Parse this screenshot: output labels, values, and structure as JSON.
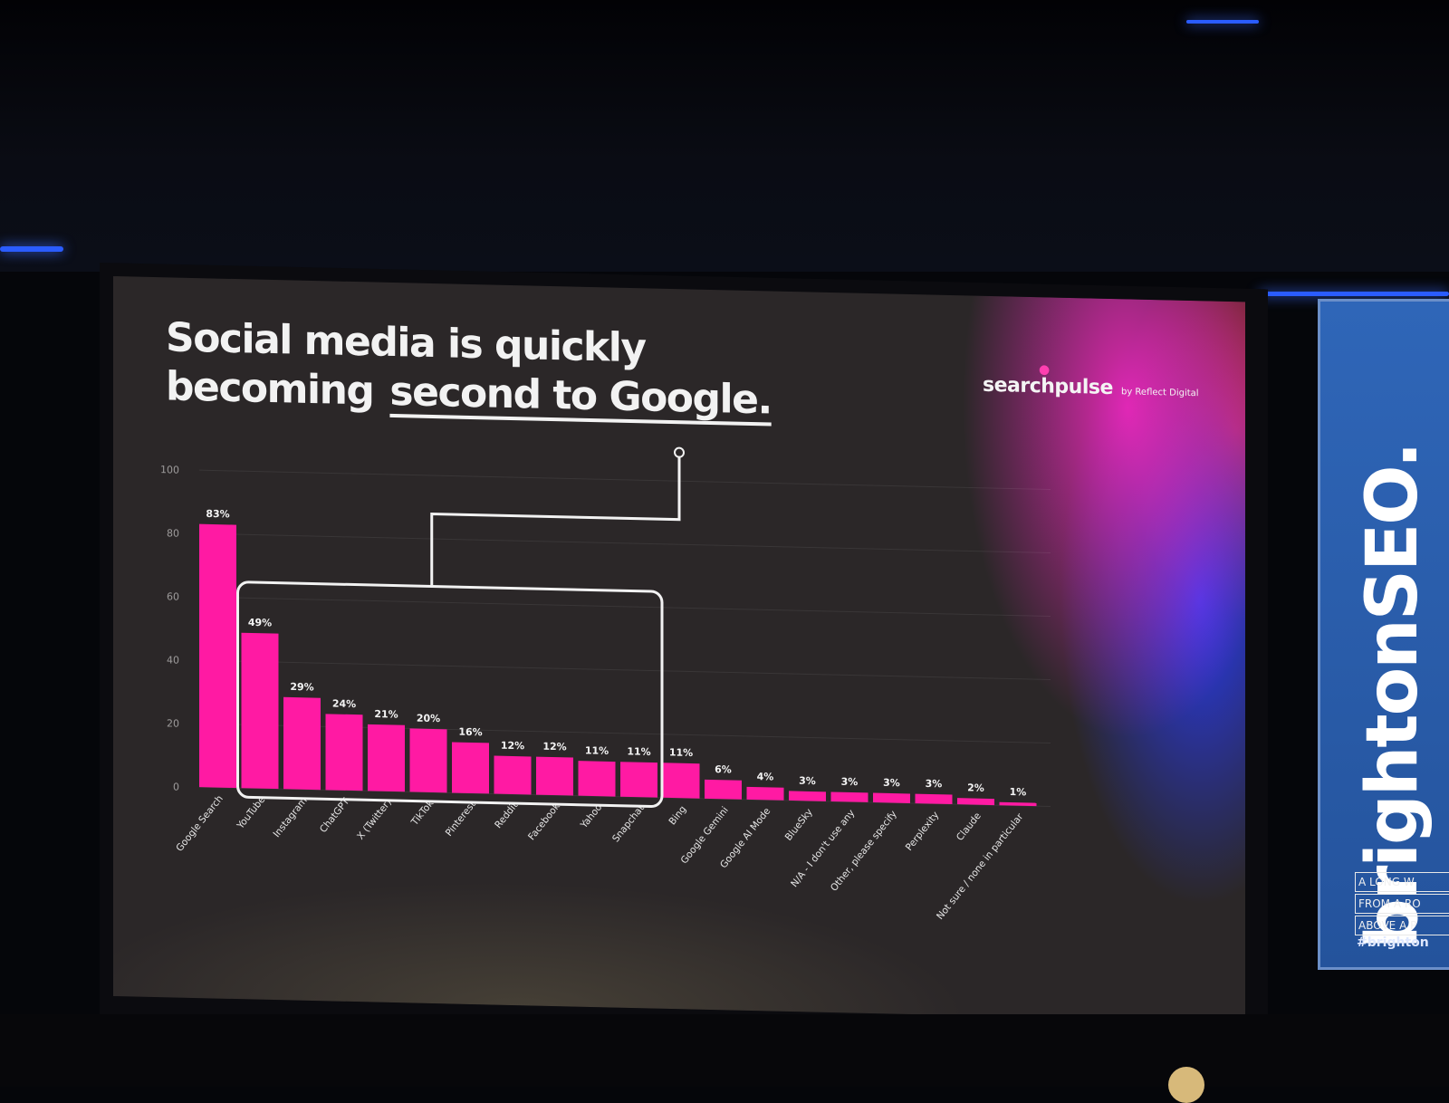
{
  "slide": {
    "title_line1": "Social media is quickly",
    "title_line2": "becoming",
    "title_highlight": "second to Google.",
    "brand": "searchpulse",
    "brand_sub": "by Reflect Digital"
  },
  "banner": {
    "logo": "brightonSEO.",
    "tagline": [
      "A LONG W",
      "FROM A RO",
      "ABOVE A P"
    ],
    "hashtag": "#brighton"
  },
  "chart_data": {
    "type": "bar",
    "title": "",
    "xlabel": "",
    "ylabel": "",
    "ylim": [
      0,
      100
    ],
    "yticks": [
      "0",
      "20",
      "40",
      "60",
      "80",
      "100"
    ],
    "categories": [
      "Google Search",
      "YouTube",
      "Instagram",
      "ChatGPT",
      "X (Twitter)",
      "TikTok",
      "Pinterest",
      "Reddit",
      "Facebook",
      "Yahoo",
      "Snapchat",
      "Bing",
      "Google Gemini",
      "Google AI Mode",
      "BlueSky",
      "N/A - I don't use any",
      "Other, please specify",
      "Perplexity",
      "Claude",
      "Not sure / none in particular"
    ],
    "values": [
      83,
      49,
      29,
      24,
      21,
      20,
      16,
      12,
      12,
      11,
      11,
      11,
      6,
      4,
      3,
      3,
      3,
      3,
      2,
      1
    ],
    "labels": [
      "83%",
      "49%",
      "29%",
      "24%",
      "21%",
      "20%",
      "16%",
      "12%",
      "12%",
      "11%",
      "11%",
      "11%",
      "6%",
      "4%",
      "3%",
      "3%",
      "3%",
      "3%",
      "2%",
      "1%"
    ],
    "highlight_range": [
      "YouTube",
      "Snapchat"
    ],
    "bar_color": "#ff1aa3",
    "grid": true,
    "legend": "none"
  }
}
